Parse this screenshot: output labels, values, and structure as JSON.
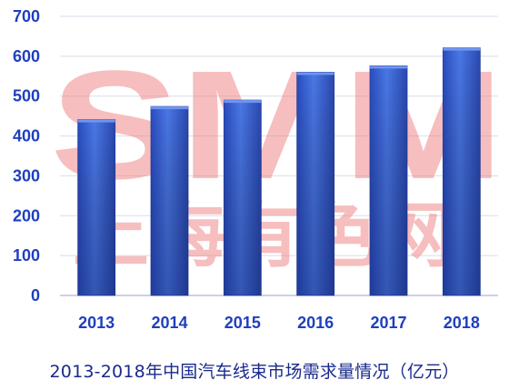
{
  "chart_data": {
    "type": "bar",
    "categories": [
      "2013",
      "2014",
      "2015",
      "2016",
      "2017",
      "2018"
    ],
    "values": [
      441,
      474,
      490,
      560,
      576,
      621
    ],
    "ylim": [
      0,
      700
    ],
    "yticks": [
      0,
      100,
      200,
      300,
      400,
      500,
      600,
      700
    ],
    "title": "2013-2018年中国汽车线束市场需求量情况（亿元）",
    "grid": true,
    "bar_color": "#3a63d8",
    "bar_dark_color": "#26409a",
    "tick_color": "#1f3fbf"
  },
  "watermark": {
    "logo": "SMM",
    "text": "上海有色网",
    "color": "#f08a8a"
  }
}
